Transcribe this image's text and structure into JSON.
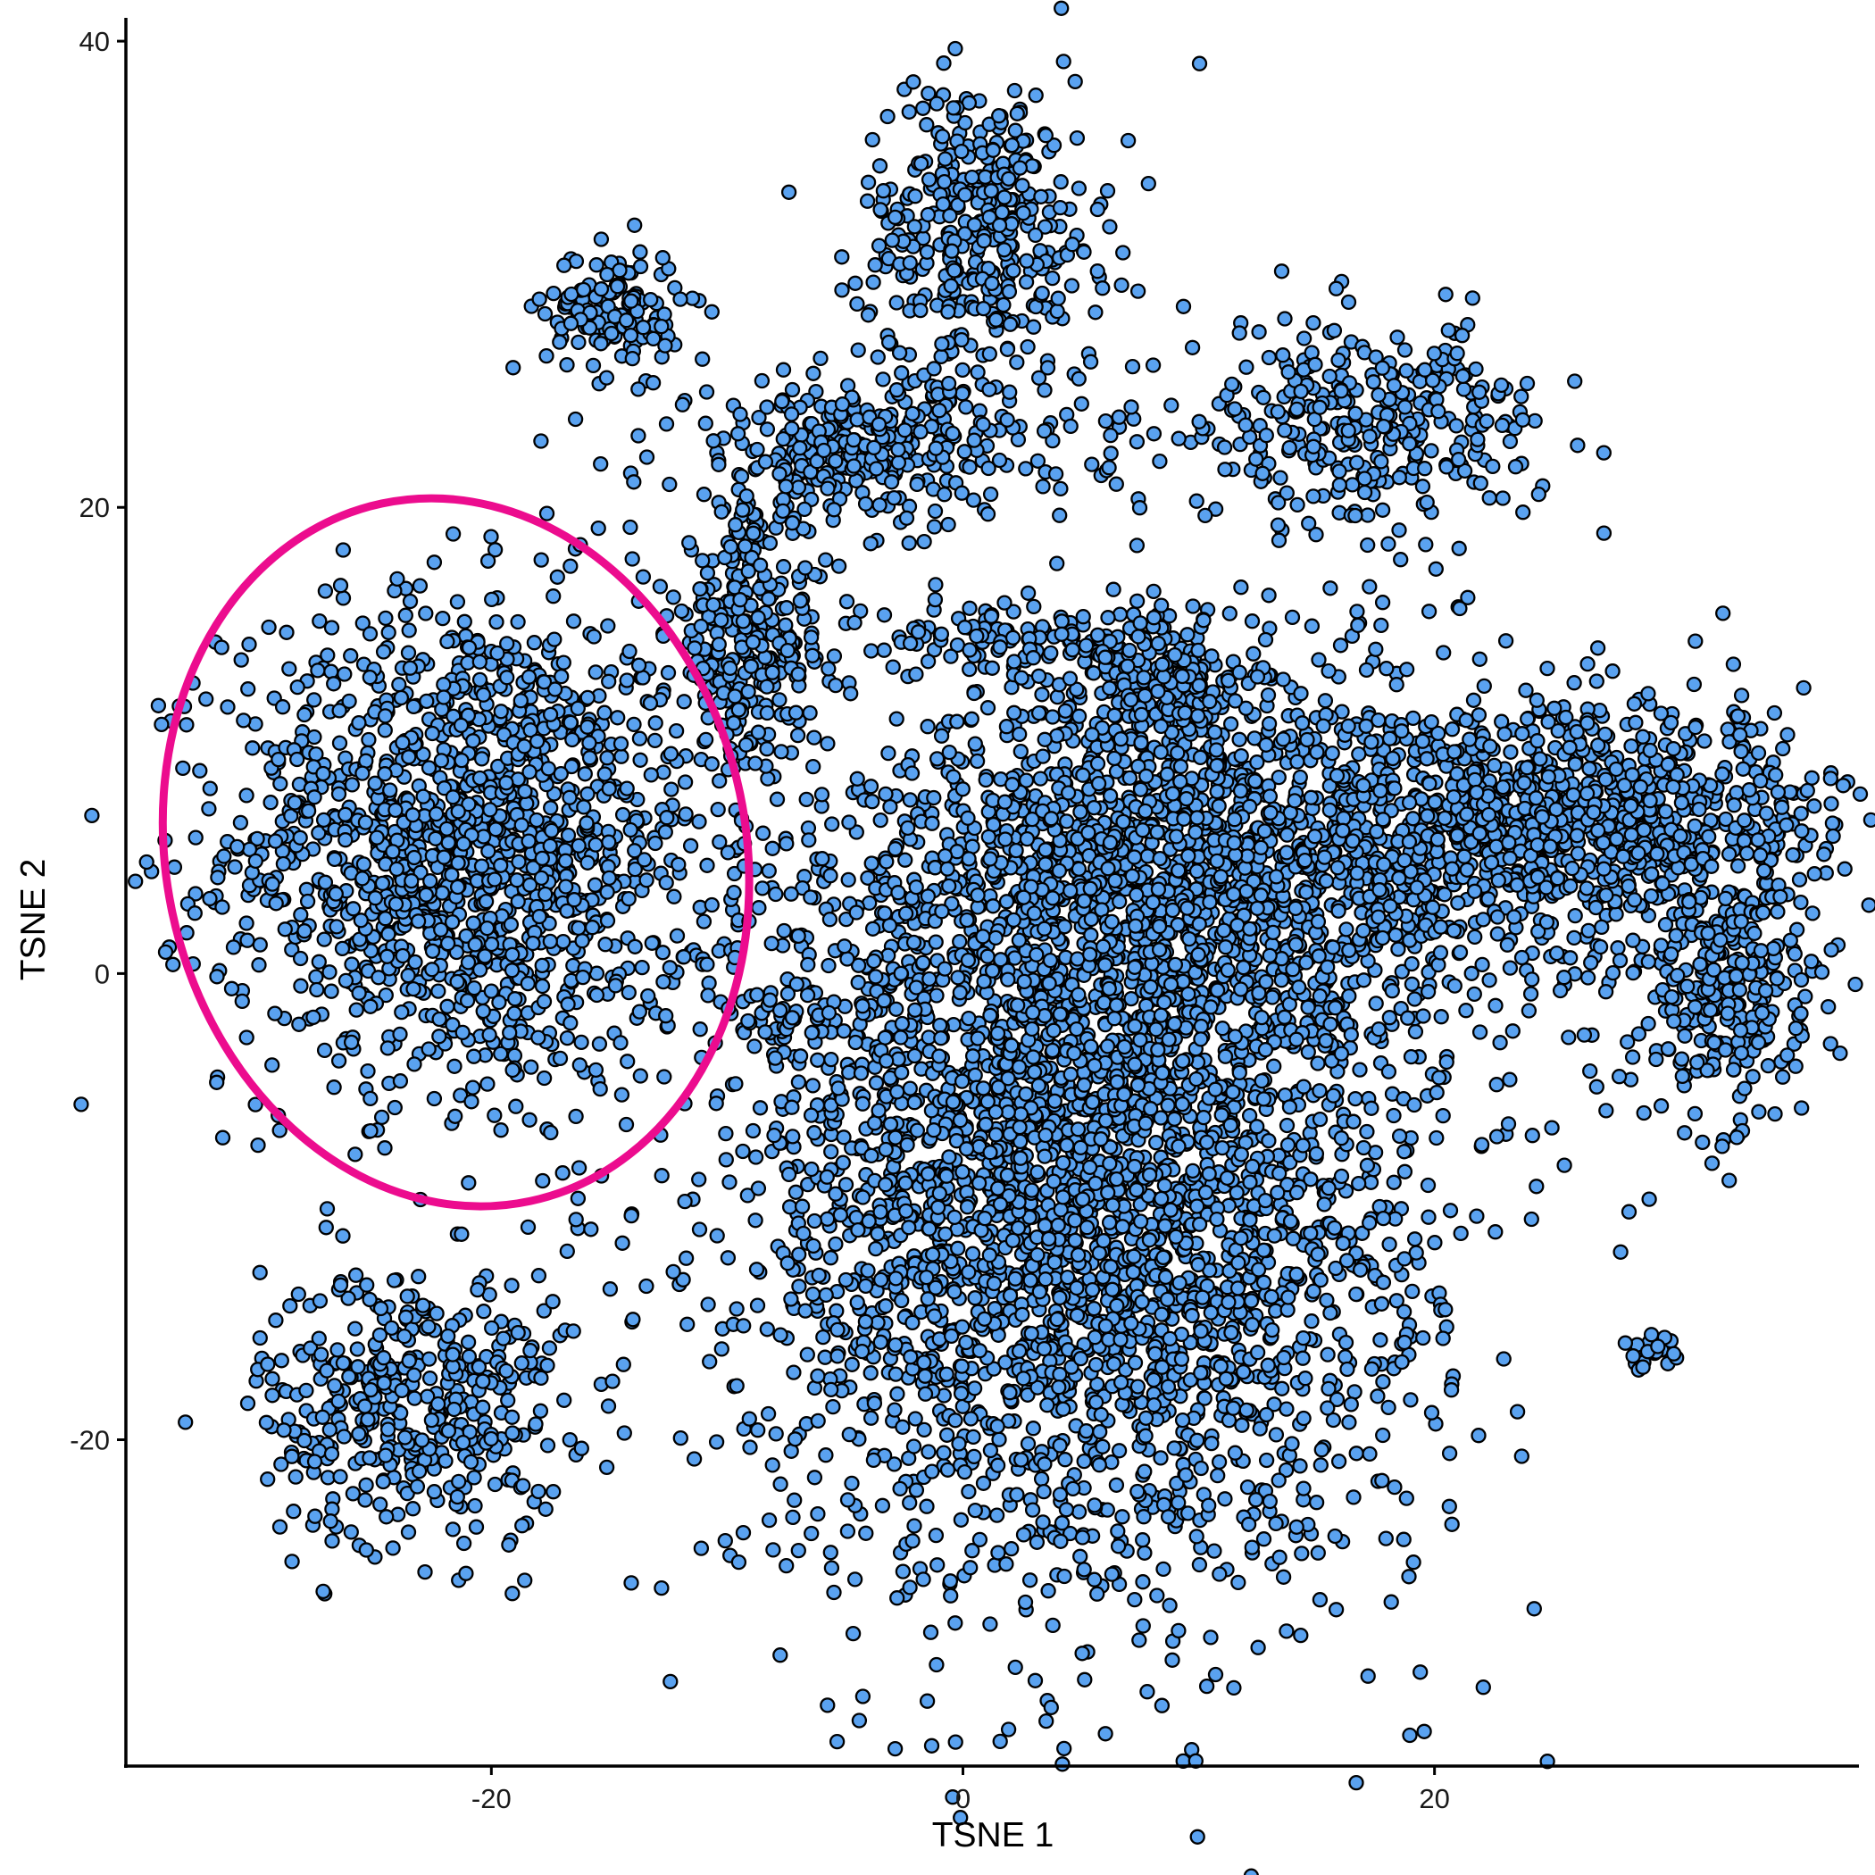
{
  "chart_data": {
    "type": "scatter",
    "title": "",
    "xlabel": "TSNE 1",
    "ylabel": "TSNE 2",
    "xlim": [
      -35.5,
      38
    ],
    "ylim": [
      -34,
      41
    ],
    "xticks": [
      -20,
      0,
      20
    ],
    "yticks": [
      -20,
      0,
      20,
      40
    ],
    "grid": false,
    "legend": "none",
    "point_fill": "#5aa2f0",
    "point_stroke": "#000000",
    "highlight_color": "#ec0c8e",
    "highlight_ellipse": {
      "center": [
        -21.5,
        5.2
      ],
      "rx_data": 12.3,
      "ry_data": 15.3,
      "rotation_deg": -12
    },
    "clusters": [
      {
        "id": "circled",
        "center": [
          -21,
          5.5
        ],
        "sx": 6.0,
        "sy": 6.2,
        "n": 1400
      },
      {
        "id": "top-left-small",
        "center": [
          -14.8,
          28.5
        ],
        "sx": 1.7,
        "sy": 1.6,
        "n": 140
      },
      {
        "id": "bottom-left",
        "center": [
          -23.3,
          -18.5
        ],
        "sx": 3.8,
        "sy": 3.6,
        "n": 420
      },
      {
        "id": "top-center-vertical",
        "center": [
          0.8,
          32
        ],
        "sx": 3.0,
        "sy": 3.8,
        "n": 380
      },
      {
        "id": "top-center-arc",
        "center": [
          -4,
          22.5
        ],
        "sx": 5.3,
        "sy": 1.9,
        "n": 340
      },
      {
        "id": "center-left-tail",
        "center": [
          -9,
          14.5
        ],
        "sx": 2.0,
        "sy": 3.3,
        "n": 280
      },
      {
        "id": "center-small-band",
        "center": [
          1.5,
          14.3
        ],
        "sx": 4.0,
        "sy": 0.8,
        "n": 85
      },
      {
        "id": "top-right",
        "center": [
          17,
          23.5
        ],
        "sx": 4.6,
        "sy": 2.6,
        "n": 340
      },
      {
        "id": "main-body",
        "center": [
          5,
          -9
        ],
        "sx": 8.6,
        "sy": 10.2,
        "n": 3300
      },
      {
        "id": "main-upper",
        "center": [
          11,
          5
        ],
        "sx": 9.0,
        "sy": 5.0,
        "n": 1500
      },
      {
        "id": "right-arm",
        "center": [
          27,
          6.5
        ],
        "sx": 6.0,
        "sy": 2.8,
        "n": 850
      },
      {
        "id": "far-right",
        "center": [
          32.5,
          -1
        ],
        "sx": 2.2,
        "sy": 3.0,
        "n": 260
      },
      {
        "id": "upper-mid-spike",
        "center": [
          8.5,
          12.5
        ],
        "sx": 2.8,
        "sy": 2.0,
        "n": 180
      },
      {
        "id": "outlier-small-right",
        "center": [
          29,
          -16
        ],
        "sx": 0.8,
        "sy": 0.5,
        "n": 22
      },
      {
        "id": "outlier-mid",
        "center": [
          -7.5,
          -1.8
        ],
        "sx": 1.3,
        "sy": 0.7,
        "n": 30
      }
    ]
  }
}
